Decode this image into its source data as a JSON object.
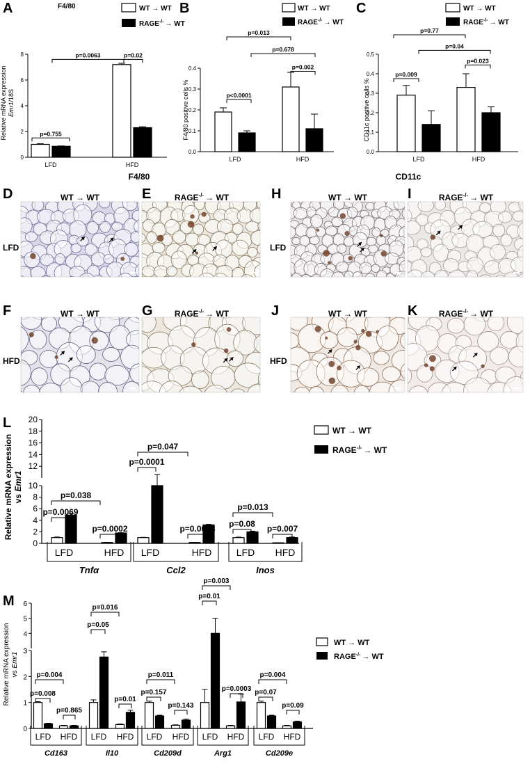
{
  "panel_letters": {
    "A": "A",
    "B": "B",
    "C": "C",
    "D": "D",
    "E": "E",
    "F": "F",
    "G": "G",
    "H": "H",
    "I": "I",
    "J": "J",
    "K": "K",
    "L": "L",
    "M": "M"
  },
  "legend": {
    "wt": "WT → WT",
    "rage_prefix": "RAGE",
    "rage_sup": "-/-",
    "rage_suffix": "→ WT"
  },
  "titles": {
    "A": "F4/80",
    "f480": "F4/80",
    "cd11c": "CD11c"
  },
  "micro": {
    "wt": "WT → WT",
    "rage_prefix": "RAGE",
    "rage_sup": "-/-",
    "rage_suffix": "→ WT",
    "row_lfd": "LFD",
    "row_hfd": "HFD"
  },
  "colors": {
    "wt_fill": "#ffffff",
    "rage_fill": "#000000",
    "axis": "#000000",
    "tissue": "#e8e4ec",
    "cell_line": "#7a7a96",
    "stain": "#6b3a1f"
  },
  "chart_data": [
    {
      "panel": "A",
      "type": "bar",
      "title": "F4/80",
      "ylabel_line1": "Relative mRNA expression",
      "ylabel_italic": "Emr1",
      "ylabel_suffix": "/18S",
      "categories": [
        "LFD",
        "HFD"
      ],
      "ylim": [
        0,
        8
      ],
      "yticks": [
        "0",
        "2",
        "4",
        "6",
        "8"
      ],
      "series": [
        {
          "name": "WT → WT",
          "values": [
            1.0,
            7.2
          ],
          "errors": [
            0.05,
            0.1
          ]
        },
        {
          "name": "RAGE-/- → WT",
          "values": [
            0.85,
            2.3
          ],
          "errors": [
            0.03,
            0.07
          ]
        }
      ],
      "annotations": [
        "p=0.755",
        "p=0.0063",
        "p=0.02"
      ]
    },
    {
      "panel": "B",
      "type": "bar",
      "ylabel": "F4/80 positive cells %",
      "categories": [
        "LFD",
        "HFD"
      ],
      "ylim": [
        0,
        0.4
      ],
      "yticks": [
        "0.0",
        "0.1",
        "0.2",
        "0.3",
        "0.4"
      ],
      "series": [
        {
          "name": "WT → WT",
          "values": [
            0.19,
            0.31
          ],
          "errors": [
            0.02,
            0.07
          ]
        },
        {
          "name": "RAGE-/- → WT",
          "values": [
            0.09,
            0.11
          ],
          "errors": [
            0.01,
            0.07
          ]
        }
      ],
      "annotations": [
        "p<0.0001",
        "p=0.002",
        "p=0.678",
        "p=0.013"
      ]
    },
    {
      "panel": "C",
      "type": "bar",
      "ylabel": "CD11c positive cells  %",
      "categories": [
        "LFD",
        "HFD"
      ],
      "ylim": [
        0,
        0.5
      ],
      "yticks": [
        "0.0",
        "0.1",
        "0.2",
        "0.3",
        "0.4",
        "0.5"
      ],
      "series": [
        {
          "name": "WT → WT",
          "values": [
            0.29,
            0.33
          ],
          "errors": [
            0.05,
            0.07
          ]
        },
        {
          "name": "RAGE-/- → WT",
          "values": [
            0.14,
            0.2
          ],
          "errors": [
            0.07,
            0.03
          ]
        }
      ],
      "annotations": [
        "p=0.009",
        "p=0.023",
        "p=0.04",
        "p=0.77"
      ]
    },
    {
      "panel": "L",
      "type": "bar",
      "ylabel_line1": "Relative mRNA expression",
      "ylabel_line2_prefix": "vs ",
      "ylabel_italic": "Emr1",
      "y_broken": true,
      "ylim": [
        0,
        20
      ],
      "yticks_lower": [
        "0",
        "2",
        "4",
        "6",
        "8",
        "10"
      ],
      "yticks_upper": [
        "10",
        "12",
        "14",
        "16",
        "18",
        "20"
      ],
      "genes": [
        "Tnfα",
        "Ccl2",
        "Inos"
      ],
      "categories": [
        "LFD",
        "HFD",
        "LFD",
        "HFD",
        "LFD",
        "HFD"
      ],
      "series": [
        {
          "name": "WT → WT",
          "values": [
            1.0,
            0.15,
            1.0,
            0.15,
            1.0,
            0.1
          ],
          "errors": [
            0.1,
            0.02,
            0.05,
            0.02,
            0.08,
            0.02
          ]
        },
        {
          "name": "RAGE-/- → WT",
          "values": [
            4.9,
            1.8,
            10.0,
            3.2,
            2.0,
            1.0
          ],
          "errors": [
            0.3,
            0.05,
            0.6,
            0.1,
            0.12,
            0.1
          ]
        }
      ],
      "annotations": [
        "p=0.0069",
        "p=0.0002",
        "p=0.038",
        "p=0.0001",
        "p=0.0003",
        "p=0.047",
        "p=0.08",
        "p=0.007",
        "p=0.013"
      ]
    },
    {
      "panel": "M",
      "type": "bar",
      "ylabel_line1": "Relative mRNA expression",
      "ylabel_line2_prefix": "vs ",
      "ylabel_italic": "Emr1",
      "y_broken": true,
      "ylim": [
        0,
        6
      ],
      "yticks_lower": [
        "0",
        "1",
        "2",
        "3"
      ],
      "yticks_upper": [
        "3",
        "4",
        "5",
        "6"
      ],
      "genes": [
        "Cd163",
        "Il10",
        "Cd209d",
        "Arg1",
        "Cd209e"
      ],
      "categories": [
        "LFD",
        "HFD",
        "LFD",
        "HFD",
        "LFD",
        "HFD",
        "LFD",
        "HFD",
        "LFD",
        "HFD"
      ],
      "series": [
        {
          "name": "WT → WT",
          "values": [
            1.0,
            0.1,
            1.0,
            0.15,
            1.0,
            0.12,
            1.0,
            0.1,
            1.0,
            0.1
          ],
          "errors": [
            0.03,
            0.02,
            0.1,
            0.02,
            0.05,
            0.02,
            0.5,
            0.02,
            0.05,
            0.02
          ]
        },
        {
          "name": "RAGE-/- → WT",
          "values": [
            0.18,
            0.1,
            2.75,
            0.62,
            0.48,
            0.32,
            4.0,
            1.02,
            0.48,
            0.25
          ],
          "errors": [
            0.02,
            0.02,
            0.2,
            0.08,
            0.03,
            0.04,
            1.0,
            0.3,
            0.03,
            0.03
          ]
        }
      ],
      "annotations": [
        "p=0.008",
        "p=0.865",
        "p=0.004",
        "p=0.05",
        "p=0.01",
        "p=0.016",
        "p=0.157",
        "p=0.143",
        "p=0.011",
        "p=0.01",
        "p=0.0003",
        "p=0.003",
        "p=0.07",
        "p=0.09",
        "p=0.004"
      ]
    }
  ]
}
